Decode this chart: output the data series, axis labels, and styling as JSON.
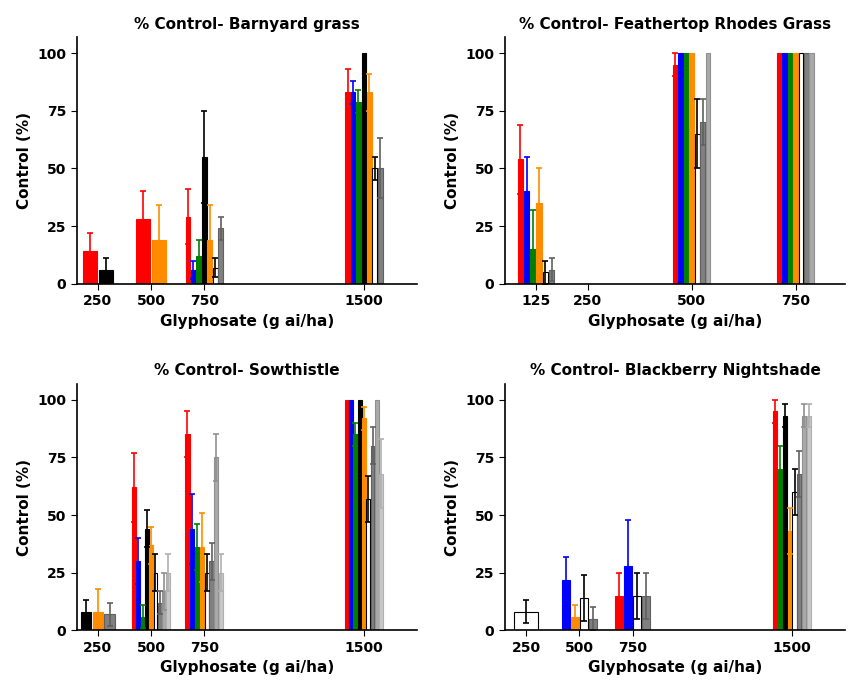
{
  "subplot_titles": [
    "% Control- Barnyard grass",
    "% Control- Feathertop Rhodes Grass",
    "% Control- Sowthistle",
    "% Control- Blackberry Nightshade"
  ],
  "xlabel": "Glyphosate (g ai/ha)",
  "ylabel": "Control (%)",
  "bar_colors": [
    "#FF0000",
    "#0000FF",
    "#008000",
    "#000000",
    "#FF8C00",
    "#FFFFFF",
    "#808080",
    "#A9A9A9",
    "#C8C8C8"
  ],
  "bar_edgecolors": [
    "#FF0000",
    "#0000FF",
    "#008000",
    "#000000",
    "#FF8C00",
    "#000000",
    "#606060",
    "#909090",
    "#B0B0B0"
  ],
  "error_colors": [
    "#FF0000",
    "#0000FF",
    "#008000",
    "#000000",
    "#FF8C00",
    "#000000",
    "#606060",
    "#909090",
    "#B0B0B0"
  ],
  "barnyard": {
    "xticks": [
      250,
      500,
      750,
      1500
    ],
    "xlim": [
      150,
      1750
    ],
    "doses": [
      250,
      500,
      750,
      1500
    ],
    "values": {
      "250": [
        14,
        0,
        0,
        6,
        0,
        0,
        0,
        0,
        0
      ],
      "500": [
        28,
        0,
        0,
        0,
        19,
        0,
        0,
        0,
        0
      ],
      "750": [
        29,
        6,
        12,
        55,
        19,
        7,
        24,
        0,
        0
      ],
      "1500": [
        83,
        83,
        79,
        100,
        83,
        50,
        50,
        0,
        0
      ]
    },
    "errors": {
      "250": [
        8,
        0,
        0,
        5,
        0,
        0,
        0,
        0,
        0
      ],
      "500": [
        12,
        0,
        0,
        0,
        15,
        0,
        0,
        0,
        0
      ],
      "750": [
        12,
        4,
        7,
        20,
        15,
        4,
        5,
        0,
        0
      ],
      "1500": [
        10,
        5,
        5,
        0,
        8,
        5,
        13,
        0,
        0
      ]
    }
  },
  "feathertop": {
    "xticks": [
      125,
      250,
      500,
      750
    ],
    "xlim": [
      50,
      870
    ],
    "doses": [
      125,
      250,
      500,
      750
    ],
    "values": {
      "125": [
        54,
        40,
        15,
        0,
        35,
        5,
        6,
        0,
        0
      ],
      "250": [
        0,
        0,
        0,
        0,
        0,
        0,
        0,
        0,
        0
      ],
      "500": [
        95,
        100,
        100,
        0,
        100,
        65,
        70,
        100,
        0
      ],
      "750": [
        100,
        100,
        100,
        0,
        100,
        100,
        100,
        100,
        0
      ]
    },
    "errors": {
      "125": [
        15,
        15,
        17,
        0,
        15,
        5,
        5,
        0,
        0
      ],
      "250": [
        0,
        0,
        0,
        0,
        0,
        0,
        0,
        0,
        0
      ],
      "500": [
        5,
        0,
        0,
        0,
        0,
        15,
        10,
        0,
        0
      ],
      "750": [
        0,
        0,
        0,
        0,
        0,
        0,
        0,
        0,
        0
      ]
    }
  },
  "sowthistle": {
    "xticks": [
      250,
      500,
      750,
      1500
    ],
    "xlim": [
      150,
      1750
    ],
    "doses": [
      250,
      500,
      750,
      1500
    ],
    "values": {
      "250": [
        0,
        0,
        0,
        8,
        8,
        0,
        7,
        0,
        0
      ],
      "500": [
        62,
        30,
        6,
        44,
        37,
        25,
        12,
        17,
        25
      ],
      "750": [
        85,
        44,
        36,
        0,
        36,
        25,
        30,
        75,
        25
      ],
      "1500": [
        100,
        100,
        85,
        100,
        92,
        57,
        80,
        100,
        68
      ]
    },
    "errors": {
      "250": [
        0,
        0,
        0,
        5,
        10,
        0,
        5,
        0,
        0
      ],
      "500": [
        15,
        10,
        5,
        8,
        8,
        8,
        5,
        8,
        8
      ],
      "750": [
        10,
        15,
        10,
        0,
        15,
        8,
        8,
        10,
        8
      ],
      "1500": [
        0,
        0,
        5,
        0,
        5,
        10,
        8,
        0,
        15
      ]
    }
  },
  "nightshade": {
    "xticks": [
      250,
      500,
      750,
      1500
    ],
    "xlim": [
      150,
      1750
    ],
    "doses": [
      250,
      500,
      750,
      1500
    ],
    "values": {
      "250": [
        0,
        0,
        0,
        0,
        0,
        8,
        0,
        0,
        0
      ],
      "500": [
        0,
        22,
        0,
        0,
        6,
        14,
        5,
        0,
        0
      ],
      "750": [
        15,
        28,
        0,
        0,
        0,
        15,
        15,
        0,
        0
      ],
      "1500": [
        95,
        0,
        70,
        93,
        43,
        60,
        68,
        93,
        93
      ]
    },
    "errors": {
      "250": [
        0,
        0,
        0,
        0,
        0,
        5,
        0,
        0,
        0
      ],
      "500": [
        0,
        10,
        0,
        0,
        5,
        10,
        5,
        0,
        0
      ],
      "750": [
        10,
        20,
        0,
        0,
        0,
        10,
        10,
        0,
        0
      ],
      "1500": [
        5,
        0,
        10,
        5,
        10,
        10,
        10,
        5,
        5
      ]
    }
  }
}
